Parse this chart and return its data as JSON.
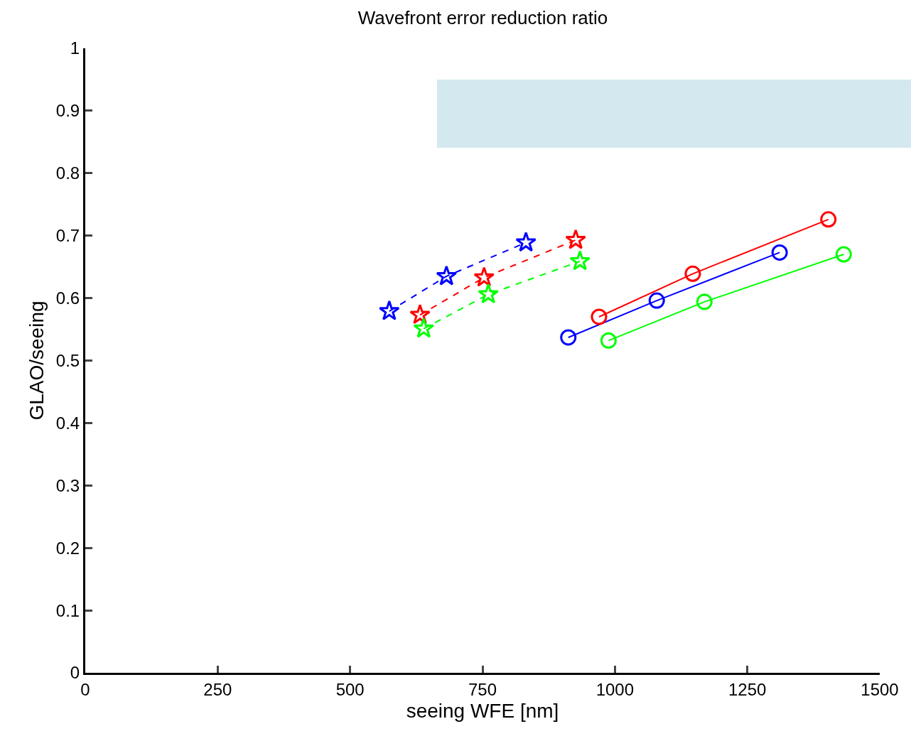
{
  "chart_data": {
    "type": "line",
    "title": "Wavefront error reduction ratio",
    "xlabel": "seeing WFE [nm]",
    "ylabel": "GLAO/seeing",
    "xlim": [
      0,
      1500
    ],
    "xticks": [
      0,
      250,
      500,
      750,
      1000,
      1250,
      1500
    ],
    "ylim": [
      0,
      1
    ],
    "yticks": [
      0,
      0.1,
      0.2,
      0.3,
      0.4,
      0.5,
      0.6,
      0.7,
      0.8,
      0.9,
      1
    ],
    "series": [
      {
        "color": "#0000ff",
        "marker": "star",
        "line_style": "dashed",
        "x": [
          574,
          682,
          832
        ],
        "values": [
          0.579,
          0.635,
          0.689
        ]
      },
      {
        "color": "#ff0000",
        "marker": "star",
        "line_style": "dashed",
        "x": [
          632,
          753,
          926
        ],
        "values": [
          0.573,
          0.633,
          0.693
        ]
      },
      {
        "color": "#00ff00",
        "marker": "star",
        "line_style": "dashed",
        "x": [
          639,
          761,
          934
        ],
        "values": [
          0.551,
          0.606,
          0.659
        ]
      },
      {
        "color": "#0000ff",
        "marker": "circle",
        "line_style": "solid",
        "x": [
          912,
          1079,
          1311
        ],
        "values": [
          0.537,
          0.596,
          0.673
        ]
      },
      {
        "color": "#ff0000",
        "marker": "circle",
        "line_style": "solid",
        "x": [
          970,
          1147,
          1403
        ],
        "values": [
          0.57,
          0.639,
          0.726
        ]
      },
      {
        "color": "#00ff00",
        "marker": "circle",
        "line_style": "solid",
        "x": [
          988,
          1169,
          1432
        ],
        "values": [
          0.532,
          0.594,
          0.67
        ]
      }
    ]
  }
}
